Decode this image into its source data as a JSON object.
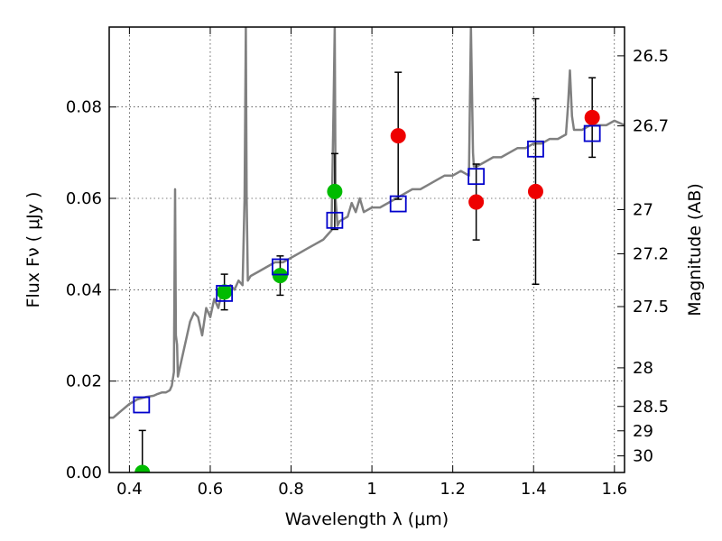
{
  "chart_data": {
    "type": "scatter",
    "xlabel": "Wavelength  λ (μm)",
    "ylabel": "Flux  Fν  ( μJy )",
    "y2label": "Magnitude (AB)",
    "xlim": [
      0.35,
      1.625
    ],
    "ylim": [
      0.0,
      0.0975
    ],
    "grid": true,
    "x_ticks": [
      0.4,
      0.6,
      0.8,
      1.0,
      1.2,
      1.4,
      1.6
    ],
    "x_tick_labels": [
      "0.4",
      "0.6",
      "0.8",
      "1",
      "1.2",
      "1.4",
      "1.6"
    ],
    "y_ticks": [
      0.0,
      0.02,
      0.04,
      0.06,
      0.08
    ],
    "y_tick_labels": [
      "0.00",
      "0.02",
      "0.04",
      "0.06",
      "0.08"
    ],
    "mag_ticks": [
      26.5,
      26.7,
      27,
      27.2,
      27.5,
      28,
      28.5,
      29,
      30
    ],
    "mag_tick_labels": [
      "26.5",
      "26.7",
      "27",
      "27.2",
      "27.5",
      "28",
      "28.5",
      "29",
      "30"
    ],
    "series": [
      {
        "kind": "line",
        "color": "#808080",
        "x": [
          0.35,
          0.36,
          0.38,
          0.4,
          0.42,
          0.44,
          0.46,
          0.47,
          0.48,
          0.49,
          0.5,
          0.505,
          0.51,
          0.513,
          0.515,
          0.518,
          0.52,
          0.53,
          0.54,
          0.55,
          0.56,
          0.57,
          0.58,
          0.59,
          0.6,
          0.61,
          0.62,
          0.63,
          0.64,
          0.65,
          0.66,
          0.67,
          0.68,
          0.685,
          0.688,
          0.69,
          0.693,
          0.7,
          0.72,
          0.74,
          0.76,
          0.78,
          0.8,
          0.82,
          0.84,
          0.86,
          0.88,
          0.89,
          0.9,
          0.905,
          0.908,
          0.91,
          0.915,
          0.92,
          0.94,
          0.95,
          0.96,
          0.97,
          0.98,
          1.0,
          1.02,
          1.04,
          1.06,
          1.08,
          1.1,
          1.12,
          1.14,
          1.16,
          1.18,
          1.2,
          1.22,
          1.24,
          1.245,
          1.25,
          1.252,
          1.255,
          1.26,
          1.28,
          1.3,
          1.32,
          1.34,
          1.36,
          1.38,
          1.4,
          1.42,
          1.44,
          1.46,
          1.48,
          1.485,
          1.49,
          1.495,
          1.5,
          1.52,
          1.54,
          1.56,
          1.58,
          1.6,
          1.625
        ],
        "y": [
          0.012,
          0.012,
          0.0135,
          0.015,
          0.016,
          0.0165,
          0.0168,
          0.0172,
          0.0175,
          0.0175,
          0.018,
          0.019,
          0.022,
          0.062,
          0.03,
          0.028,
          0.021,
          0.025,
          0.029,
          0.033,
          0.035,
          0.034,
          0.03,
          0.036,
          0.034,
          0.038,
          0.036,
          0.04,
          0.039,
          0.041,
          0.04,
          0.042,
          0.041,
          0.06,
          0.0975,
          0.06,
          0.042,
          0.043,
          0.044,
          0.045,
          0.046,
          0.046,
          0.047,
          0.048,
          0.049,
          0.05,
          0.051,
          0.052,
          0.053,
          0.08,
          0.0975,
          0.06,
          0.054,
          0.055,
          0.056,
          0.059,
          0.057,
          0.06,
          0.057,
          0.058,
          0.058,
          0.059,
          0.06,
          0.061,
          0.062,
          0.062,
          0.063,
          0.064,
          0.065,
          0.065,
          0.066,
          0.065,
          0.0975,
          0.07,
          0.067,
          0.067,
          0.067,
          0.068,
          0.069,
          0.069,
          0.07,
          0.071,
          0.071,
          0.072,
          0.072,
          0.073,
          0.073,
          0.074,
          0.08,
          0.088,
          0.078,
          0.075,
          0.075,
          0.076,
          0.076,
          0.076,
          0.077,
          0.076
        ]
      },
      {
        "kind": "open-square",
        "color": "#0000cc",
        "x": [
          0.43,
          0.635,
          0.773,
          0.908,
          1.065,
          1.258,
          1.405,
          1.545
        ],
        "y": [
          0.0148,
          0.0392,
          0.045,
          0.0552,
          0.0588,
          0.0648,
          0.0708,
          0.0742
        ]
      },
      {
        "kind": "filled-circle",
        "color": "#00bb00",
        "x": [
          0.432,
          0.635,
          0.773,
          0.908
        ],
        "y": [
          0.0,
          0.0395,
          0.0431,
          0.0615
        ],
        "err": [
          0.0092,
          0.0039,
          0.0043,
          0.0083
        ]
      },
      {
        "kind": "filled-circle",
        "color": "#ee0000",
        "x": [
          1.065,
          1.258,
          1.405,
          1.545
        ],
        "y": [
          0.0737,
          0.0592,
          0.0615,
          0.0777
        ],
        "err": [
          0.0139,
          0.0083,
          0.0203,
          0.0087
        ]
      }
    ]
  }
}
